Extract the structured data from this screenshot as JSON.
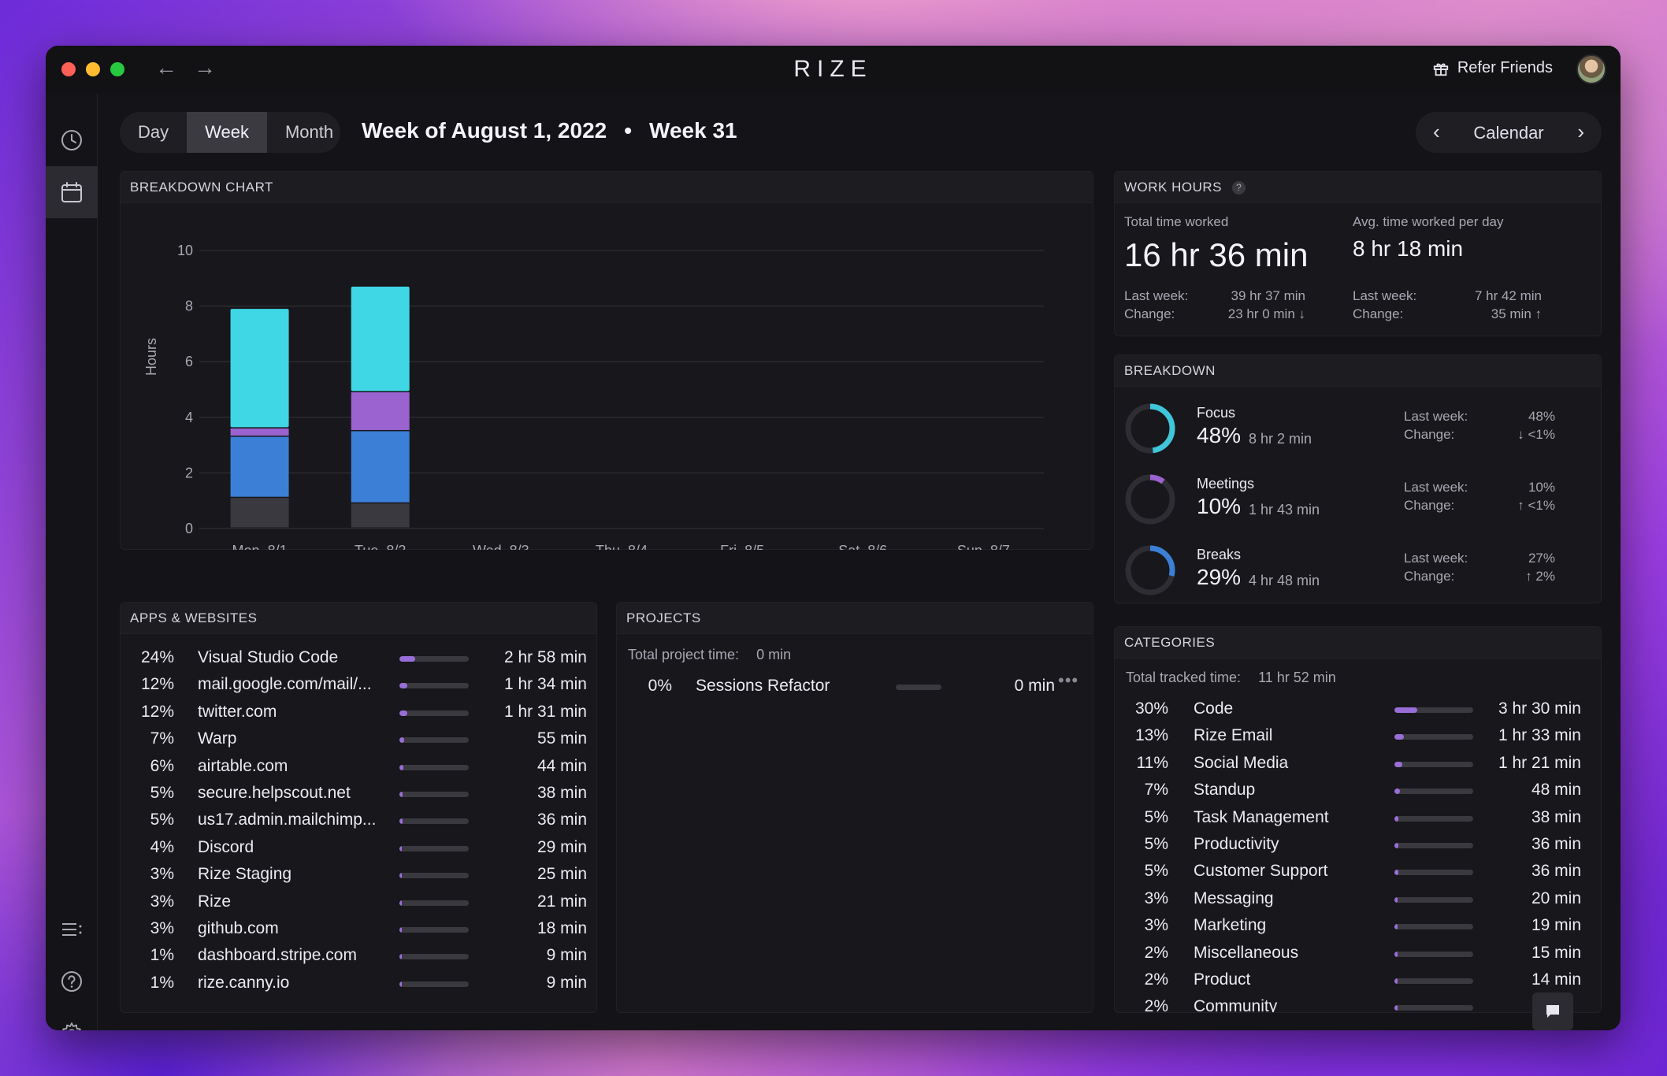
{
  "app": {
    "brand": "RIZE",
    "refer_label": "Refer Friends"
  },
  "range_tabs": {
    "day": "Day",
    "week": "Week",
    "month": "Month",
    "active": "Week"
  },
  "header": {
    "title": "Week of August 1, 2022",
    "separator": "•",
    "week": "Week 31"
  },
  "calendar_nav": {
    "label": "Calendar"
  },
  "breakdown_chart": {
    "heading": "BREAKDOWN CHART"
  },
  "chart_data": {
    "type": "bar",
    "stacked": true,
    "categories": [
      "Mon, 8/1",
      "Tue, 8/2",
      "Wed, 8/3",
      "Thu, 8/4",
      "Fri, 8/5",
      "Sat, 8/6",
      "Sun, 8/7"
    ],
    "ylabel": "Hours",
    "ylim": [
      0,
      10
    ],
    "yticks": [
      0,
      2,
      4,
      6,
      8,
      10
    ],
    "grid": true,
    "series": [
      {
        "values": [
          1.1,
          0.9,
          0,
          0,
          0,
          0,
          0
        ],
        "color": "#3a3940"
      },
      {
        "values": [
          2.2,
          2.6,
          0,
          0,
          0,
          0,
          0
        ],
        "color": "#3b7fd6"
      },
      {
        "values": [
          0.3,
          1.4,
          0,
          0,
          0,
          0,
          0
        ],
        "color": "#9a63cf"
      },
      {
        "values": [
          4.3,
          3.8,
          0,
          0,
          0,
          0,
          0
        ],
        "color": "#3fd7e5"
      }
    ]
  },
  "work_hours": {
    "heading": "WORK HOURS",
    "help": "?",
    "total_label": "Total time worked",
    "total_value": "16 hr 36 min",
    "avg_label": "Avg. time worked per day",
    "avg_value": "8 hr 18 min",
    "last_week_label": "Last week:",
    "change_label": "Change:",
    "total_last_week": "39 hr 37 min",
    "total_change": "23 hr 0 min ↓",
    "avg_last_week": "7 hr 42 min",
    "avg_change": "35 min ↑"
  },
  "breakdown": {
    "heading": "BREAKDOWN",
    "last_week_label": "Last week:",
    "change_label": "Change:",
    "items": [
      {
        "name": "Focus",
        "pct": "48%",
        "fraction": 0.48,
        "duration": "8 hr 2 min",
        "last_week": "48%",
        "change": "↓ <1%",
        "color": "#3fc6d9"
      },
      {
        "name": "Meetings",
        "pct": "10%",
        "fraction": 0.1,
        "duration": "1 hr 43 min",
        "last_week": "10%",
        "change": "↑ <1%",
        "color": "#9a63cf"
      },
      {
        "name": "Breaks",
        "pct": "29%",
        "fraction": 0.29,
        "duration": "4 hr 48 min",
        "last_week": "27%",
        "change": "↑ 2%",
        "color": "#3b7fd6"
      }
    ]
  },
  "apps": {
    "heading": "APPS & WEBSITES",
    "rows": [
      {
        "pct": "24%",
        "name": "Visual Studio Code",
        "fraction": 0.24,
        "duration": "2 hr 58 min"
      },
      {
        "pct": "12%",
        "name": "mail.google.com/mail/...",
        "fraction": 0.12,
        "duration": "1 hr 34 min"
      },
      {
        "pct": "12%",
        "name": "twitter.com",
        "fraction": 0.12,
        "duration": "1 hr 31 min"
      },
      {
        "pct": "7%",
        "name": "Warp",
        "fraction": 0.07,
        "duration": "55 min"
      },
      {
        "pct": "6%",
        "name": "airtable.com",
        "fraction": 0.06,
        "duration": "44 min"
      },
      {
        "pct": "5%",
        "name": "secure.helpscout.net",
        "fraction": 0.05,
        "duration": "38 min"
      },
      {
        "pct": "5%",
        "name": "us17.admin.mailchimp...",
        "fraction": 0.05,
        "duration": "36 min"
      },
      {
        "pct": "4%",
        "name": "Discord",
        "fraction": 0.04,
        "duration": "29 min"
      },
      {
        "pct": "3%",
        "name": "Rize Staging",
        "fraction": 0.03,
        "duration": "25 min"
      },
      {
        "pct": "3%",
        "name": "Rize",
        "fraction": 0.03,
        "duration": "21 min"
      },
      {
        "pct": "3%",
        "name": "github.com",
        "fraction": 0.03,
        "duration": "18 min"
      },
      {
        "pct": "1%",
        "name": "dashboard.stripe.com",
        "fraction": 0.01,
        "duration": "9 min"
      },
      {
        "pct": "1%",
        "name": "rize.canny.io",
        "fraction": 0.01,
        "duration": "9 min"
      }
    ]
  },
  "projects": {
    "heading": "PROJECTS",
    "total_label": "Total project time:",
    "total_value": "0 min",
    "rows": [
      {
        "pct": "0%",
        "name": "Sessions Refactor",
        "fraction": 0,
        "duration": "0 min"
      }
    ]
  },
  "categories": {
    "heading": "CATEGORIES",
    "total_label": "Total tracked time:",
    "total_value": "11 hr 52 min",
    "rows": [
      {
        "pct": "30%",
        "name": "Code",
        "fraction": 0.3,
        "duration": "3 hr 30 min"
      },
      {
        "pct": "13%",
        "name": "Rize Email",
        "fraction": 0.13,
        "duration": "1 hr 33 min"
      },
      {
        "pct": "11%",
        "name": "Social Media",
        "fraction": 0.11,
        "duration": "1 hr 21 min"
      },
      {
        "pct": "7%",
        "name": "Standup",
        "fraction": 0.07,
        "duration": "48 min"
      },
      {
        "pct": "5%",
        "name": "Task Management",
        "fraction": 0.05,
        "duration": "38 min"
      },
      {
        "pct": "5%",
        "name": "Productivity",
        "fraction": 0.05,
        "duration": "36 min"
      },
      {
        "pct": "5%",
        "name": "Customer Support",
        "fraction": 0.05,
        "duration": "36 min"
      },
      {
        "pct": "3%",
        "name": "Messaging",
        "fraction": 0.03,
        "duration": "20 min"
      },
      {
        "pct": "3%",
        "name": "Marketing",
        "fraction": 0.03,
        "duration": "19 min"
      },
      {
        "pct": "2%",
        "name": "Miscellaneous",
        "fraction": 0.02,
        "duration": "15 min"
      },
      {
        "pct": "2%",
        "name": "Product",
        "fraction": 0.02,
        "duration": "14 min"
      },
      {
        "pct": "2%",
        "name": "Community",
        "fraction": 0.02,
        "duration": ""
      }
    ]
  },
  "colors": {
    "accent": "#9a6ed8",
    "focus": "#3fc6d9",
    "meetings": "#9a63cf",
    "breaks": "#3b7fd6"
  },
  "icons": [
    "clock-icon",
    "calendar-icon",
    "list-icon",
    "help-icon",
    "settings-icon",
    "gift-icon",
    "chat-icon",
    "back-arrow-icon",
    "forward-arrow-icon",
    "chevron-left-icon",
    "chevron-right-icon",
    "more-icon"
  ]
}
